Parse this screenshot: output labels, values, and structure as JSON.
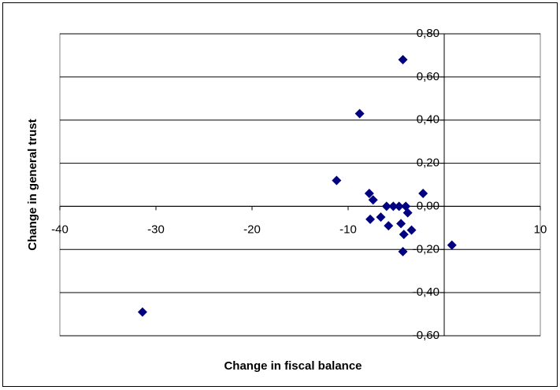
{
  "chart_data": {
    "type": "scatter",
    "x_label": "Change in fiscal balance",
    "y_label": "Change in general trust",
    "x": [
      -31.4,
      -8.8,
      -4.3,
      -11.2,
      -7.8,
      -7.4,
      -7.7,
      -6.6,
      -6.0,
      -5.3,
      -5.8,
      -4.7,
      -4.5,
      -4.0,
      -3.8,
      -4.2,
      -3.4,
      -4.3,
      -2.2,
      0.8
    ],
    "series": [
      {
        "color": "#000080",
        "values": [
          -0.49,
          0.43,
          0.68,
          0.12,
          0.06,
          0.03,
          -0.06,
          -0.05,
          0.0,
          0.0,
          -0.09,
          0.0,
          -0.08,
          0.0,
          -0.03,
          -0.13,
          -0.11,
          -0.21,
          0.06,
          -0.18
        ]
      }
    ],
    "xlim": [
      -40,
      10
    ],
    "xticks": [
      -40,
      -30,
      -20,
      -10,
      10
    ],
    "ylim": [
      -0.6,
      0.8
    ],
    "yticks": [
      {
        "value": -0.6,
        "label": "-0,60"
      },
      {
        "value": -0.4,
        "label": "-0,40"
      },
      {
        "value": -0.2,
        "label": "-0,20"
      },
      {
        "value": 0,
        "label": "0,00"
      },
      {
        "value": 0.2,
        "label": "0,20"
      },
      {
        "value": 0.4,
        "label": "0,40"
      },
      {
        "value": 0.6,
        "label": "0,60"
      },
      {
        "value": 0.8,
        "label": "0,80"
      }
    ],
    "grid": true
  }
}
